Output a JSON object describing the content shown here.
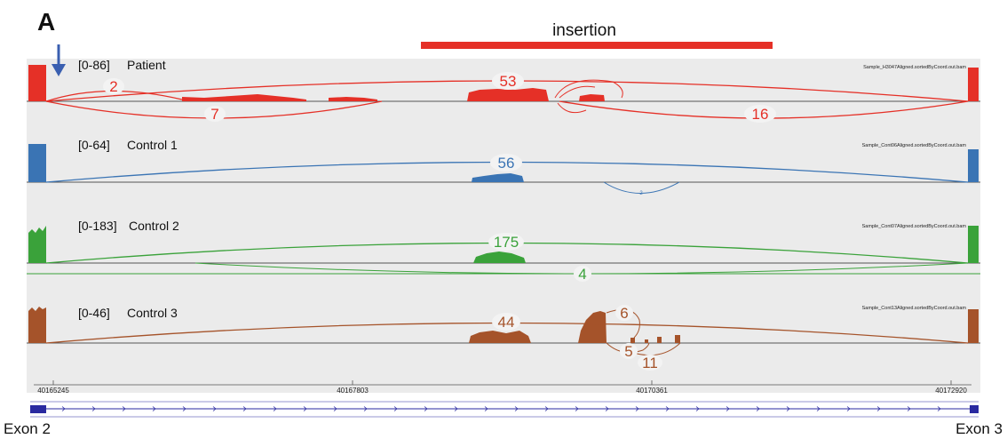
{
  "panel_label": "A",
  "insertion": {
    "label": "insertion",
    "color": "#e53027"
  },
  "tracks": [
    {
      "range": "[0-86]",
      "name": "Patient",
      "file": "Sample_H3047Aligned.sortedByCoord.out.bam",
      "color": "#e53027",
      "junctions": [
        {
          "label": "53"
        },
        {
          "label": "2"
        },
        {
          "label": "7"
        },
        {
          "label": "16"
        }
      ]
    },
    {
      "range": "[0-64]",
      "name": "Control 1",
      "file": "Sample_Cont06Aligned.sortedByCoord.out.bam",
      "color": "#3a74b4",
      "junctions": [
        {
          "label": "56"
        },
        {
          "label": "2"
        }
      ]
    },
    {
      "range": "[0-183]",
      "name": "Control 2",
      "file": "Sample_Cont07Aligned.sortedByCoord.out.bam",
      "color": "#3aa23a",
      "junctions": [
        {
          "label": "175"
        },
        {
          "label": "4"
        }
      ]
    },
    {
      "range": "[0-46]",
      "name": "Control 3",
      "file": "Sample_Cont13Aligned.sortedByCoord.out.bam",
      "color": "#a5532a",
      "junctions": [
        {
          "label": "44"
        },
        {
          "label": "6"
        },
        {
          "label": "5"
        },
        {
          "label": "11"
        }
      ]
    }
  ],
  "ruler": {
    "ticks": [
      "40165245",
      "40167803",
      "40170361",
      "40172920"
    ]
  },
  "exons": {
    "left": "Exon 2",
    "right": "Exon 3"
  },
  "arrow_color": "#3a5fb0",
  "gene_color": "#2a2aa0"
}
